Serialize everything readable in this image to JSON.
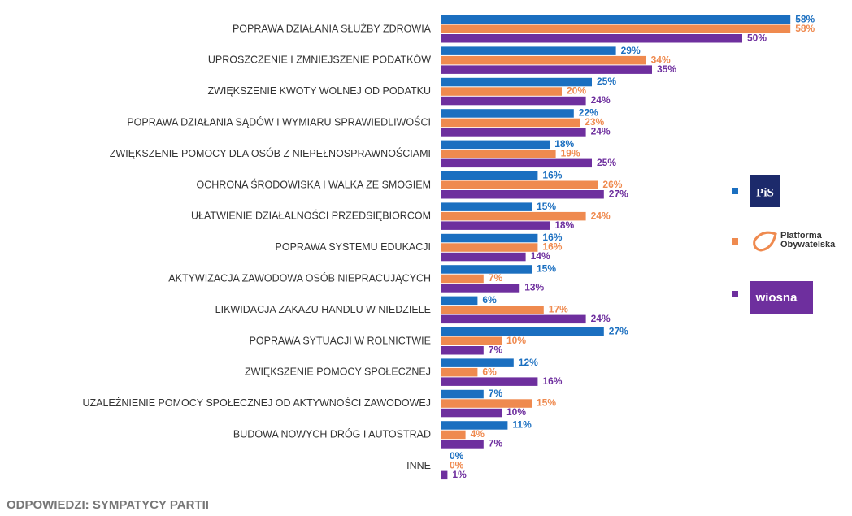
{
  "chart_data": {
    "type": "bar",
    "orientation": "horizontal",
    "categories": [
      "POPRAWA DZIAŁANIA SŁUŻBY ZDROWIA",
      "UPROSZCZENIE I ZMNIEJSZENIE PODATKÓW",
      "ZWIĘKSZENIE KWOTY WOLNEJ OD PODATKU",
      "POPRAWA DZIAŁANIA SĄDÓW I WYMIARU SPRAWIEDLIWOŚCI",
      "ZWIĘKSZENIE POMOCY DLA OSÓB Z NIEPEŁNOSPRAWNOŚCIAMI",
      "OCHRONA ŚRODOWISKA I WALKA ZE SMOGIEM",
      "UŁATWIENIE DZIAŁALNOŚCI PRZEDSIĘBIORCOM",
      "POPRAWA SYSTEMU EDUKACJI",
      "AKTYWIZACJA ZAWODOWA OSÓB NIEPRACUJĄCYCH",
      "LIKWIDACJA ZAKAZU HANDLU W NIEDZIELE",
      "POPRAWA SYTUACJI W ROLNICTWIE",
      "ZWIĘKSZENIE POMOCY SPOŁECZNEJ",
      "UZALEŻNIENIE POMOCY SPOŁECZNEJ OD AKTYWNOŚCI ZAWODOWEJ",
      "BUDOWA NOWYCH DRÓG I AUTOSTRAD",
      "INNE"
    ],
    "series": [
      {
        "name": "PiS",
        "color": "#1b6fc0",
        "values": [
          58,
          29,
          25,
          22,
          18,
          16,
          15,
          16,
          15,
          6,
          27,
          12,
          7,
          11,
          0
        ],
        "value_labels": [
          "58%",
          "29%",
          "25%",
          "22%",
          "18%",
          "16%",
          "15%",
          "16%",
          "15%",
          "6%",
          "27%",
          "12%",
          "7%",
          "11%",
          "0%"
        ]
      },
      {
        "name": "Platforma Obywatelska",
        "color": "#ef8a4f",
        "values": [
          58,
          34,
          20,
          23,
          19,
          26,
          24,
          16,
          7,
          17,
          10,
          6,
          15,
          4,
          0
        ],
        "value_labels": [
          "58%",
          "34%",
          "20%",
          "23%",
          "19%",
          "26%",
          "24%",
          "16%",
          "7%",
          "17%",
          "10%",
          "6%",
          "15%",
          "4%",
          "0%"
        ]
      },
      {
        "name": "wiosna",
        "color": "#6e2f9e",
        "values": [
          50,
          35,
          24,
          24,
          25,
          27,
          18,
          14,
          13,
          24,
          7,
          16,
          10,
          7,
          1
        ],
        "value_labels": [
          "50%",
          "35%",
          "24%",
          "24%",
          "25%",
          "27%",
          "18%",
          "14%",
          "13%",
          "24%",
          "7%",
          "16%",
          "10%",
          "7%",
          "1%"
        ]
      }
    ],
    "footnote": "ODPOWIEDZI: SYMPATYCY PARTII"
  }
}
